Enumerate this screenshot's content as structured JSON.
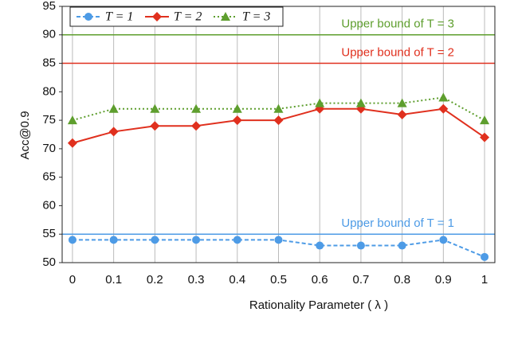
{
  "chart_data": {
    "type": "line",
    "x_label": "Rationality Parameter ( λ )",
    "y_label": "Acc@0.9",
    "x": [
      0,
      0.1,
      0.2,
      0.3,
      0.4,
      0.5,
      0.6,
      0.7,
      0.8,
      0.9,
      1
    ],
    "series": [
      {
        "name": "T = 1",
        "color": "#4d9be6",
        "marker": "circle",
        "dash": "dashed",
        "values": [
          54,
          54,
          54,
          54,
          54,
          54,
          53,
          53,
          53,
          54,
          51
        ]
      },
      {
        "name": "T = 2",
        "color": "#e0301e",
        "marker": "diamond",
        "dash": "solid",
        "values": [
          71,
          73,
          74,
          74,
          75,
          75,
          77,
          77,
          76,
          77,
          72
        ]
      },
      {
        "name": "T = 3",
        "color": "#5e9e2e",
        "marker": "triangle",
        "dash": "dotted",
        "values": [
          75,
          77,
          77,
          77,
          77,
          77,
          78,
          78,
          78,
          79,
          75
        ]
      }
    ],
    "reference_lines": [
      {
        "value": 90,
        "label": "Upper bound of T = 3",
        "color": "#5e9e2e"
      },
      {
        "value": 85,
        "label": "Upper bound of T = 2",
        "color": "#e0301e"
      },
      {
        "value": 55,
        "label": "Upper bound of T = 1",
        "color": "#4d9be6"
      }
    ],
    "xlim": [
      -0.025,
      1.025
    ],
    "xticks": [
      0,
      0.1,
      0.2,
      0.3,
      0.4,
      0.5,
      0.6,
      0.7,
      0.8,
      0.9,
      1
    ],
    "ylim": [
      50,
      95
    ],
    "yticks": [
      50,
      55,
      60,
      65,
      70,
      75,
      80,
      85,
      90,
      95
    ],
    "grid": true,
    "legend": "top-left"
  }
}
